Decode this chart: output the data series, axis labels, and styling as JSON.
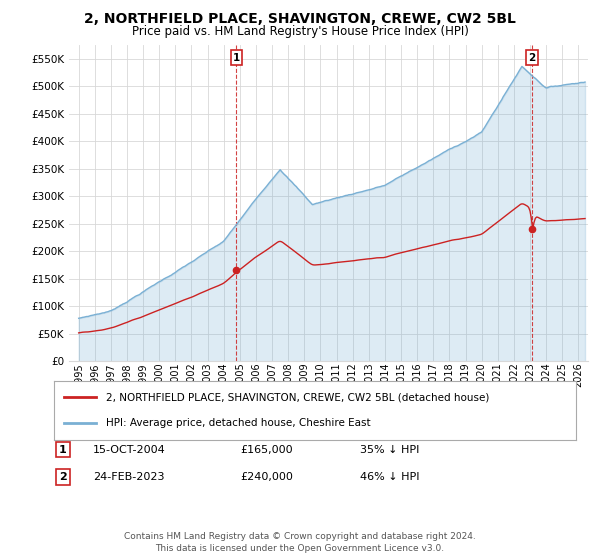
{
  "title": "2, NORTHFIELD PLACE, SHAVINGTON, CREWE, CW2 5BL",
  "subtitle": "Price paid vs. HM Land Registry's House Price Index (HPI)",
  "ylim": [
    0,
    575000
  ],
  "yticks": [
    0,
    50000,
    100000,
    150000,
    200000,
    250000,
    300000,
    350000,
    400000,
    450000,
    500000,
    550000
  ],
  "ytick_labels": [
    "£0",
    "£50K",
    "£100K",
    "£150K",
    "£200K",
    "£250K",
    "£300K",
    "£350K",
    "£400K",
    "£450K",
    "£500K",
    "£550K"
  ],
  "hpi_color": "#7ab0d4",
  "price_color": "#cc2222",
  "legend_label1": "2, NORTHFIELD PLACE, SHAVINGTON, CREWE, CW2 5BL (detached house)",
  "legend_label2": "HPI: Average price, detached house, Cheshire East",
  "table_row1": [
    "1",
    "15-OCT-2004",
    "£165,000",
    "35% ↓ HPI"
  ],
  "table_row2": [
    "2",
    "24-FEB-2023",
    "£240,000",
    "46% ↓ HPI"
  ],
  "footer": "Contains HM Land Registry data © Crown copyright and database right 2024.\nThis data is licensed under the Open Government Licence v3.0.",
  "background_color": "#ffffff",
  "grid_color": "#d8d8d8",
  "sale1_year": 2004.79,
  "sale2_year": 2023.12,
  "sale1_price": 165000,
  "sale2_price": 240000
}
